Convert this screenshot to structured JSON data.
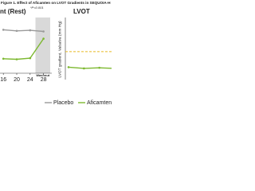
{
  "title": "Figure 1. Effect of Aficamten on LVOT Gradients in SEQUOIA-H",
  "chart_data": [
    {
      "type": "line",
      "title": "nt (Rest)",
      "annotation": "*P<0.001",
      "x": [
        16,
        20,
        24,
        28
      ],
      "xlim": [
        15,
        30
      ],
      "xticks": [
        16,
        20,
        24,
        28
      ],
      "ylim": [
        0,
        100
      ],
      "shade": {
        "label": "Washout",
        "range": [
          25.6,
          30
        ],
        "color": "#d9d9d9"
      },
      "legend": "bottom",
      "series": [
        {
          "name": "Placebo",
          "color": "#9a9a9a",
          "values": [
            78,
            76,
            77,
            75
          ]
        },
        {
          "name": "Aficamten",
          "color": "#7cb82f",
          "values": [
            26,
            25,
            27,
            62
          ]
        }
      ]
    },
    {
      "type": "line",
      "title": "LVOT",
      "ylabel": "LVOT gradient, Valsalva (mm Hg)",
      "ylim": [
        0,
        100
      ],
      "reference": {
        "value": 45,
        "color": "#e8b923"
      },
      "series": [
        {
          "color": "#7cb82f",
          "values": [
            20,
            18,
            19,
            18
          ]
        }
      ]
    }
  ]
}
